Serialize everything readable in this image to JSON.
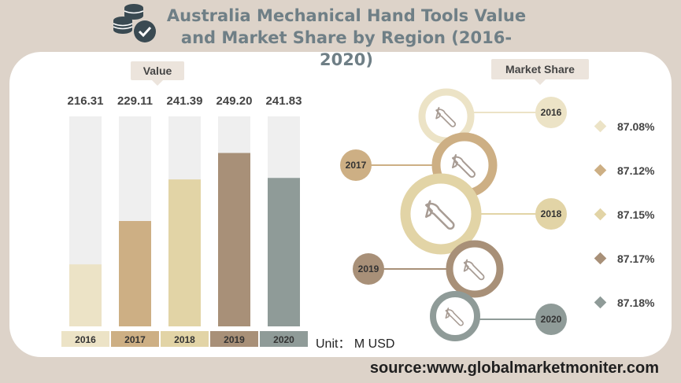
{
  "title": "Australia Mechanical Hand Tools Value and Market Share by Region (2016-2020)",
  "value_label": "Value",
  "share_label": "Market Share",
  "unit": "Unit： M USD",
  "source": "source:www.globalmarketmoniter.com",
  "logo_icon": "coins-check-icon",
  "ring_icon": "wrench-icon",
  "colors": {
    "2016": "#ece3c6",
    "2017": "#cdaf84",
    "2018": "#e2d4a6",
    "2019": "#a89078",
    "2020": "#8f9b98",
    "track": "#efefef",
    "title": "#6f7f86"
  },
  "chart_data": [
    {
      "type": "bar",
      "categories": [
        "2016",
        "2017",
        "2018",
        "2019",
        "2020"
      ],
      "values": [
        216.31,
        229.11,
        241.39,
        249.2,
        241.83
      ],
      "value_labels": [
        "216.31",
        "229.11",
        "241.39",
        "249.20",
        "241.83"
      ],
      "unit": "M USD"
    },
    {
      "type": "pie",
      "categories": [
        "2016",
        "2017",
        "2018",
        "2019",
        "2020"
      ],
      "values": [
        87.08,
        87.12,
        87.15,
        87.17,
        87.18
      ],
      "value_labels": [
        "87.08%",
        "87.12%",
        "87.15%",
        "87.17%",
        "87.18%"
      ]
    }
  ]
}
